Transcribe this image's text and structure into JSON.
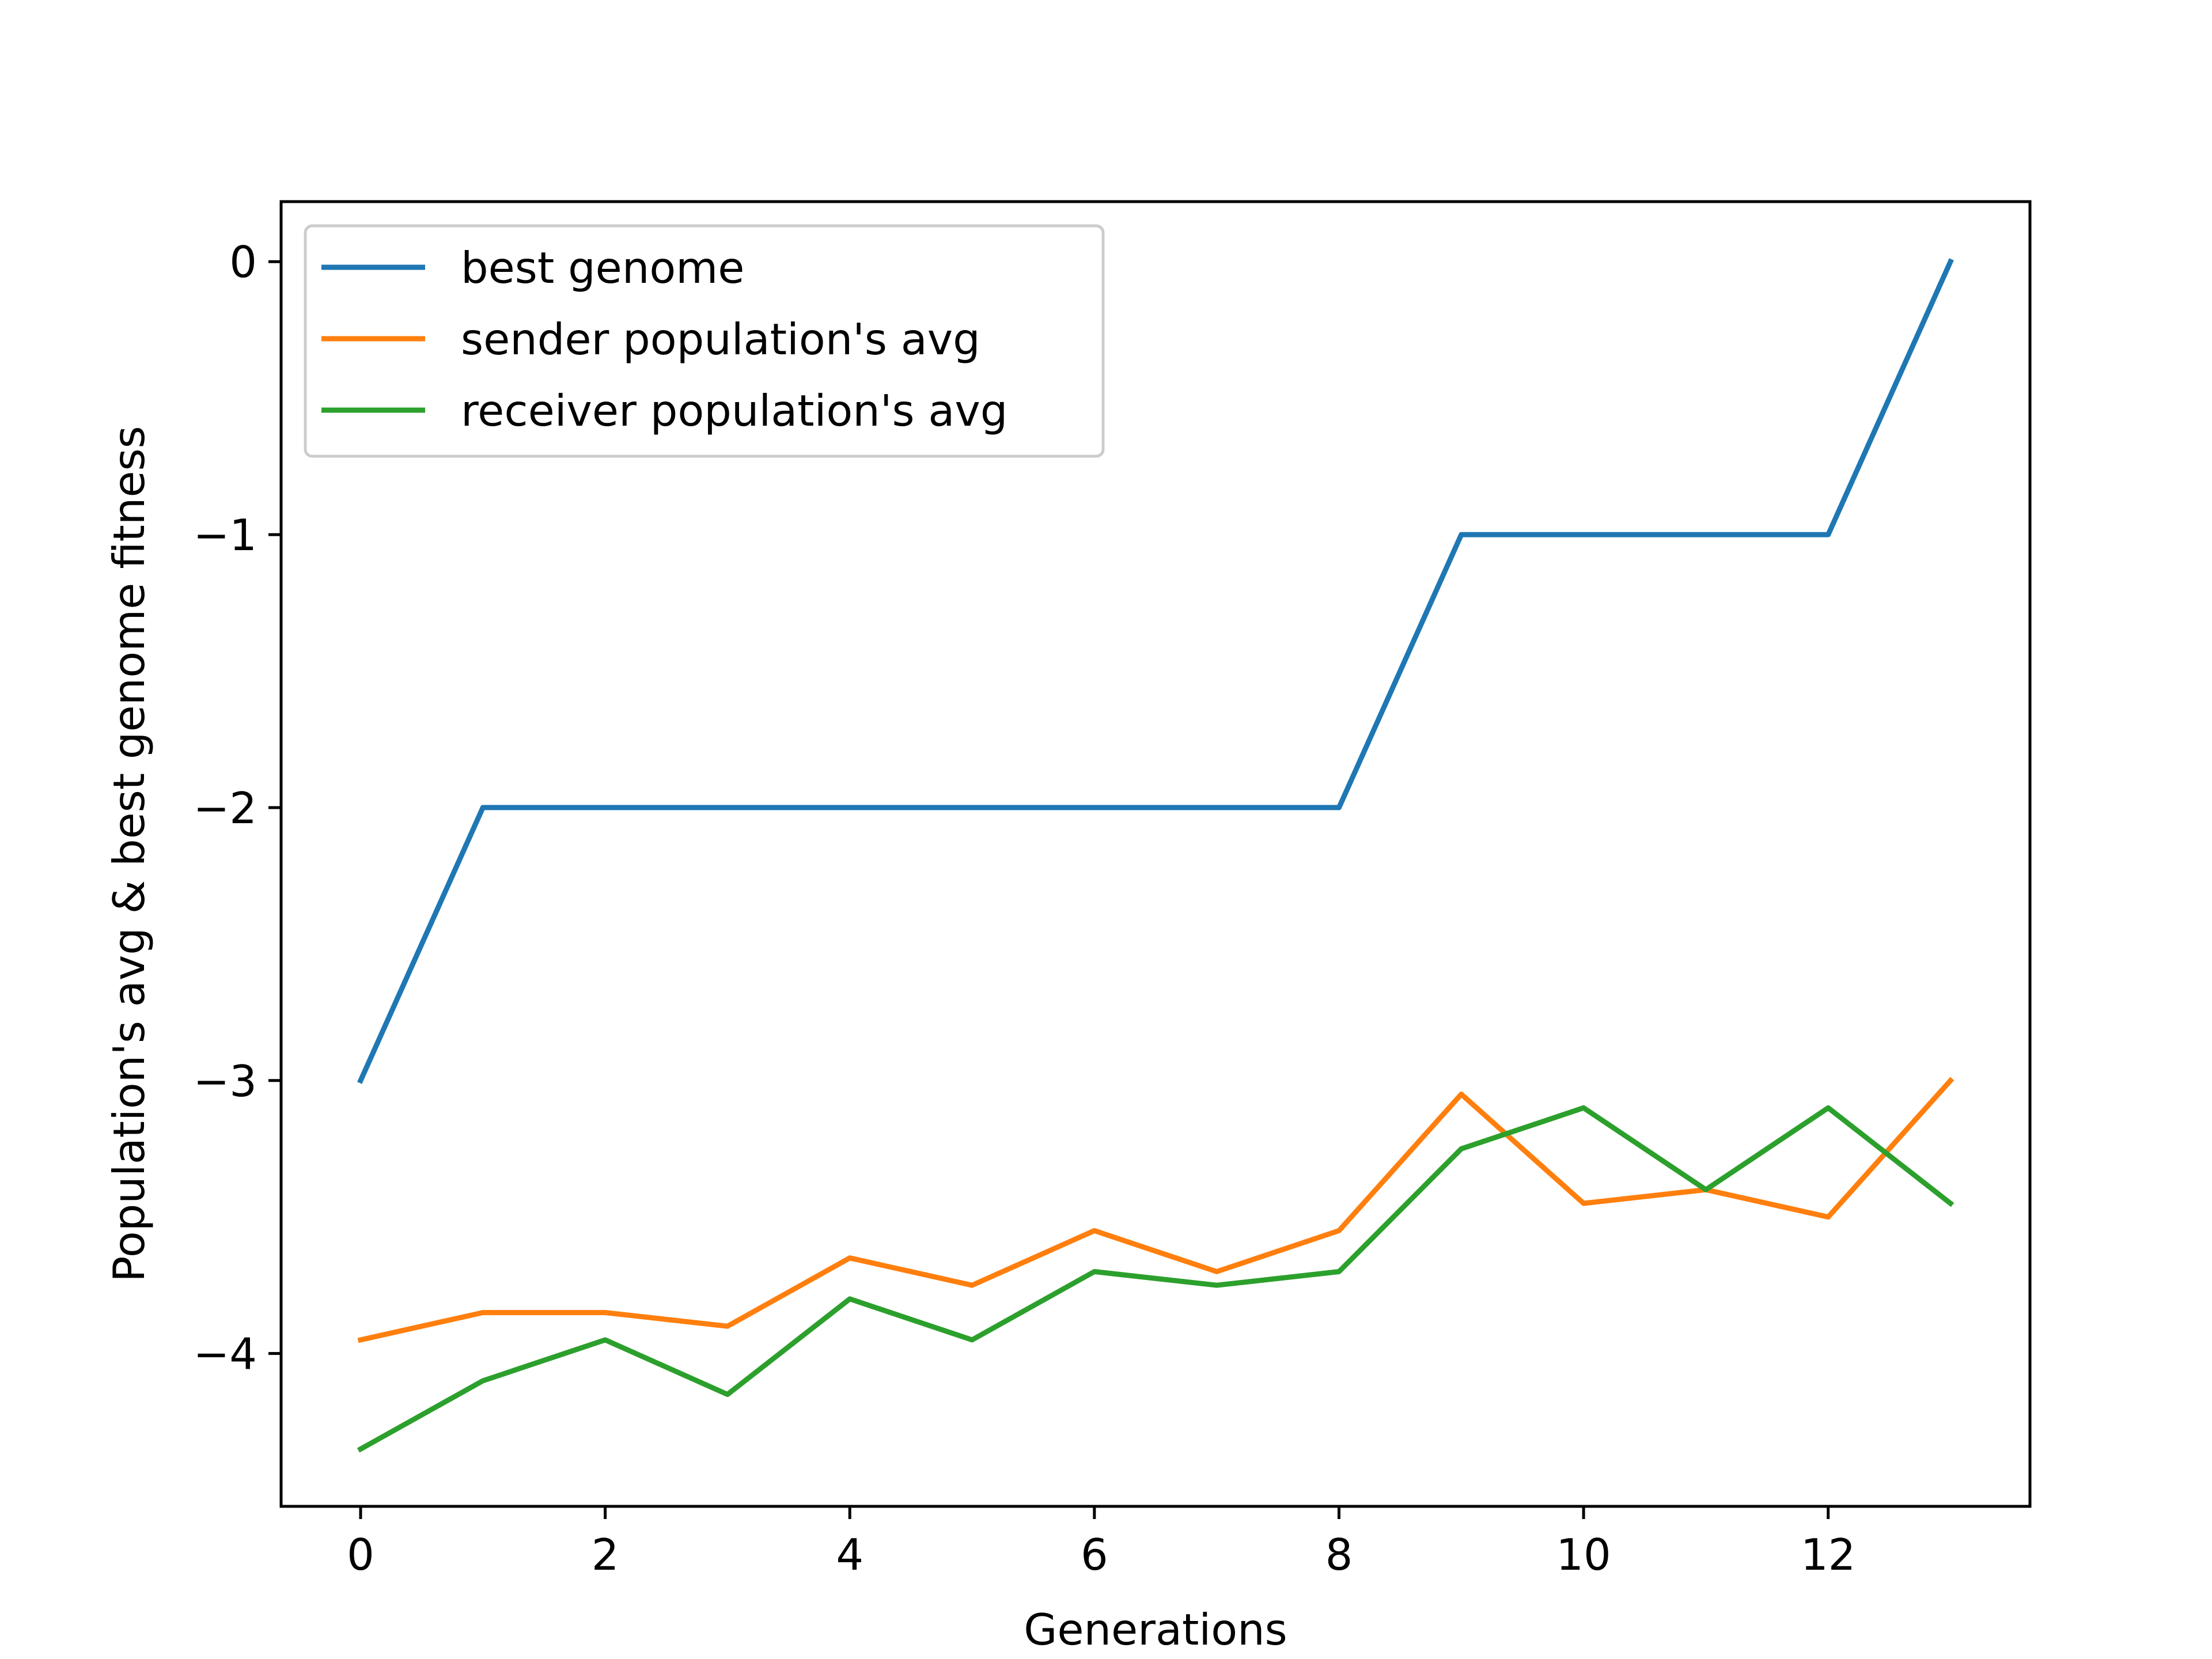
{
  "chart_data": {
    "type": "line",
    "xlabel": "Generations",
    "ylabel": "Population's avg & best genome fitness",
    "xlim": [
      -0.65,
      13.65
    ],
    "ylim": [
      -4.56,
      0.22
    ],
    "xticks": [
      0,
      2,
      4,
      6,
      8,
      10,
      12
    ],
    "yticks": [
      0,
      -1,
      -2,
      -3,
      -4
    ],
    "ytick_labels": [
      "0",
      "−1",
      "−2",
      "−3",
      "−4"
    ],
    "grid": false,
    "legend_position": "upper-left",
    "x": [
      0,
      1,
      2,
      3,
      4,
      5,
      6,
      7,
      8,
      9,
      10,
      11,
      12,
      13
    ],
    "series": [
      {
        "name": "best genome",
        "color": "#1f77b4",
        "values": [
          -3,
          -2,
          -2,
          -2,
          -2,
          -2,
          -2,
          -2,
          -2,
          -1,
          -1,
          -1,
          -1,
          0
        ]
      },
      {
        "name": "sender population's avg",
        "color": "#ff7f0e",
        "values": [
          -3.95,
          -3.85,
          -3.85,
          -3.9,
          -3.65,
          -3.75,
          -3.55,
          -3.7,
          -3.55,
          -3.05,
          -3.45,
          -3.4,
          -3.5,
          -3.0
        ]
      },
      {
        "name": "receiver population's avg",
        "color": "#2ca02c",
        "values": [
          -4.35,
          -4.1,
          -3.95,
          -4.15,
          -3.8,
          -3.95,
          -3.7,
          -3.75,
          -3.7,
          -3.25,
          -3.1,
          -3.4,
          -3.1,
          -3.45
        ]
      }
    ]
  }
}
